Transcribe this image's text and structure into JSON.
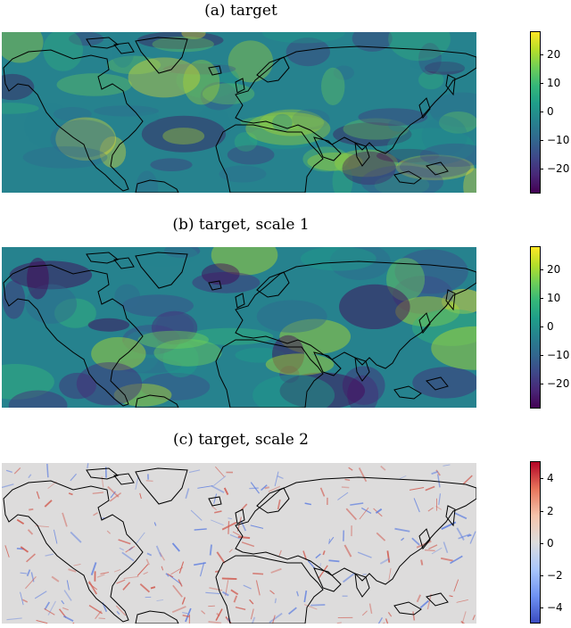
{
  "chart_data": [
    {
      "type": "heatmap",
      "title": "(a) target",
      "colormap": "viridis",
      "colorbar": {
        "range": [
          -28,
          28
        ],
        "ticks": [
          20,
          10,
          0,
          -10,
          -20
        ],
        "tick_labels": [
          "20",
          "10",
          "0",
          "−10",
          "−20"
        ]
      },
      "overlay": "world coastlines"
    },
    {
      "type": "heatmap",
      "title": "(b) target, scale 1",
      "colormap": "viridis",
      "colorbar": {
        "range": [
          -28,
          28
        ],
        "ticks": [
          20,
          10,
          0,
          -10,
          -20
        ],
        "tick_labels": [
          "20",
          "10",
          "0",
          "−10",
          "−20"
        ]
      },
      "overlay": "world coastlines"
    },
    {
      "type": "heatmap",
      "title": "(c) target, scale 2",
      "colormap": "coolwarm",
      "colorbar": {
        "range": [
          -5,
          5
        ],
        "ticks": [
          4,
          2,
          0,
          -2,
          -4
        ],
        "tick_labels": [
          "4",
          "2",
          "0",
          "−2",
          "−4"
        ]
      },
      "overlay": "world coastlines"
    }
  ]
}
